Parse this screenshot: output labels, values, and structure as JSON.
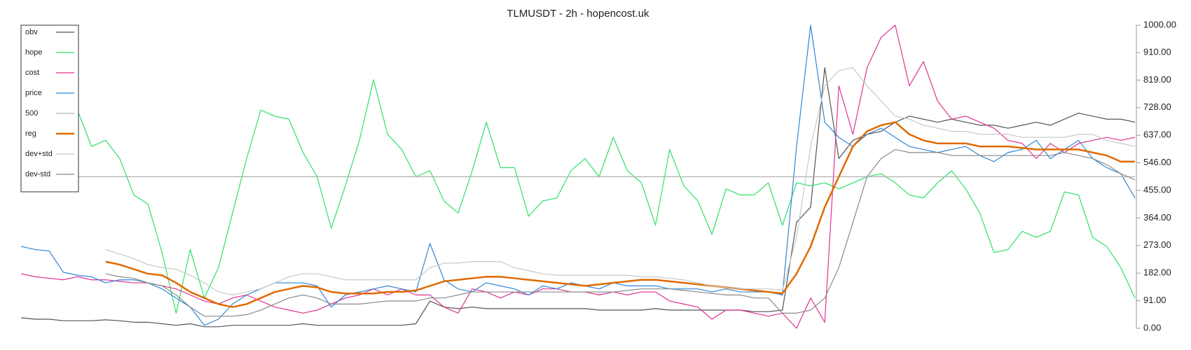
{
  "chart_data": {
    "type": "line",
    "title": "TLMUSDT - 2h - hopencost.uk",
    "ylim": [
      0,
      1000
    ],
    "yticks": [
      {
        "value": 0,
        "label": "0.00"
      },
      {
        "value": 91,
        "label": "91.00"
      },
      {
        "value": 182,
        "label": "182.00"
      },
      {
        "value": 273,
        "label": "273.00"
      },
      {
        "value": 364,
        "label": "364.00"
      },
      {
        "value": 455,
        "label": "455.00"
      },
      {
        "value": 546,
        "label": "546.00"
      },
      {
        "value": 637,
        "label": "637.00"
      },
      {
        "value": 728,
        "label": "728.00"
      },
      {
        "value": 819,
        "label": "819.00"
      },
      {
        "value": 910,
        "label": "910.00"
      },
      {
        "value": 1000,
        "label": "1000.00"
      }
    ],
    "legend": "top-left",
    "grid": false,
    "series": [
      {
        "name": "obv",
        "color": "#555555",
        "values": [
          35,
          30,
          30,
          25,
          25,
          25,
          28,
          25,
          20,
          20,
          15,
          10,
          15,
          5,
          5,
          10,
          10,
          10,
          10,
          10,
          15,
          10,
          10,
          10,
          10,
          10,
          10,
          10,
          15,
          90,
          70,
          65,
          70,
          65,
          65,
          65,
          65,
          65,
          65,
          65,
          65,
          60,
          60,
          60,
          60,
          65,
          60,
          60,
          60,
          60,
          60,
          60,
          55,
          55,
          60,
          350,
          400,
          860,
          560,
          620,
          640,
          650,
          680,
          700,
          690,
          680,
          690,
          680,
          670,
          670,
          660,
          670,
          680,
          670,
          690,
          710,
          700,
          690,
          690,
          680
        ]
      },
      {
        "name": "hope",
        "color": "#2ee06a",
        "values": [
          null,
          null,
          null,
          null,
          720,
          600,
          620,
          560,
          440,
          410,
          250,
          50,
          260,
          100,
          200,
          380,
          560,
          720,
          700,
          690,
          580,
          500,
          330,
          470,
          620,
          820,
          640,
          590,
          500,
          520,
          420,
          380,
          520,
          680,
          530,
          530,
          370,
          420,
          430,
          520,
          560,
          500,
          630,
          520,
          480,
          340,
          590,
          470,
          420,
          310,
          460,
          440,
          440,
          480,
          340,
          480,
          470,
          480,
          460,
          480,
          500,
          510,
          480,
          440,
          430,
          480,
          520,
          460,
          380,
          250,
          260,
          320,
          300,
          320,
          450,
          440,
          300,
          270,
          200,
          100
        ]
      },
      {
        "name": "cost",
        "color": "#e0338f",
        "values": [
          180,
          170,
          165,
          160,
          170,
          160,
          160,
          155,
          150,
          150,
          140,
          130,
          110,
          90,
          80,
          100,
          110,
          90,
          70,
          60,
          50,
          60,
          80,
          100,
          110,
          130,
          110,
          130,
          110,
          110,
          70,
          50,
          130,
          120,
          100,
          120,
          110,
          130,
          130,
          120,
          120,
          110,
          120,
          110,
          120,
          120,
          90,
          80,
          70,
          30,
          60,
          60,
          50,
          40,
          50,
          0,
          100,
          20,
          800,
          640,
          860,
          960,
          1000,
          800,
          880,
          750,
          690,
          700,
          680,
          660,
          620,
          610,
          560,
          610,
          580,
          610,
          620,
          630,
          620,
          630
        ]
      },
      {
        "name": "price",
        "color": "#2f86d6",
        "values": [
          270,
          260,
          255,
          185,
          175,
          170,
          150,
          160,
          160,
          150,
          130,
          100,
          70,
          10,
          30,
          80,
          110,
          130,
          150,
          150,
          150,
          140,
          70,
          110,
          120,
          130,
          140,
          130,
          120,
          280,
          160,
          130,
          120,
          150,
          140,
          130,
          110,
          140,
          130,
          150,
          140,
          130,
          150,
          140,
          140,
          140,
          130,
          130,
          130,
          120,
          130,
          120,
          120,
          120,
          110,
          600,
          1000,
          680,
          630,
          600,
          640,
          660,
          630,
          600,
          590,
          580,
          590,
          600,
          570,
          550,
          580,
          590,
          620,
          560,
          590,
          620,
          560,
          530,
          510,
          430
        ]
      },
      {
        "name": "500",
        "color": "#b0b0b0",
        "values": [
          500,
          500,
          500,
          500,
          500,
          500,
          500,
          500,
          500,
          500,
          500,
          500,
          500,
          500,
          500,
          500,
          500,
          500,
          500,
          500,
          500,
          500,
          500,
          500,
          500,
          500,
          500,
          500,
          500,
          500,
          500,
          500,
          500,
          500,
          500,
          500,
          500,
          500,
          500,
          500,
          500,
          500,
          500,
          500,
          500,
          500,
          500,
          500,
          500,
          500,
          500,
          500,
          500,
          500,
          500,
          500,
          500,
          500,
          500,
          500,
          500,
          500,
          500,
          500,
          500,
          500,
          500,
          500,
          500,
          500,
          500,
          500,
          500,
          500,
          500,
          500,
          500,
          500,
          500,
          500
        ]
      },
      {
        "name": "reg",
        "color": "#e06a00",
        "line_width": 2.5,
        "values": [
          null,
          null,
          null,
          null,
          null,
          null,
          220,
          210,
          195,
          180,
          175,
          150,
          120,
          100,
          80,
          70,
          80,
          100,
          120,
          130,
          140,
          135,
          120,
          115,
          115,
          115,
          120,
          120,
          125,
          140,
          155,
          160,
          165,
          170,
          170,
          165,
          160,
          155,
          150,
          145,
          140,
          145,
          150,
          155,
          160,
          160,
          155,
          150,
          145,
          140,
          135,
          130,
          125,
          120,
          115,
          180,
          270,
          400,
          500,
          600,
          650,
          670,
          680,
          640,
          620,
          610,
          610,
          610,
          600,
          600,
          600,
          595,
          590,
          590,
          590,
          590,
          580,
          570,
          550,
          550
        ]
      },
      {
        "name": "dev+std",
        "color": "#c8c8c8",
        "values": [
          null,
          null,
          null,
          null,
          null,
          null,
          260,
          245,
          230,
          210,
          200,
          195,
          175,
          150,
          120,
          110,
          120,
          130,
          150,
          170,
          180,
          180,
          170,
          160,
          160,
          160,
          160,
          160,
          160,
          200,
          215,
          215,
          220,
          220,
          220,
          200,
          190,
          180,
          175,
          175,
          175,
          175,
          175,
          175,
          170,
          170,
          165,
          160,
          150,
          140,
          135,
          130,
          130,
          130,
          125,
          300,
          600,
          800,
          850,
          860,
          800,
          750,
          700,
          690,
          670,
          660,
          650,
          650,
          640,
          640,
          640,
          630,
          630,
          630,
          630,
          640,
          640,
          620,
          610,
          600
        ]
      },
      {
        "name": "dev-std",
        "color": "#8a8a8a",
        "values": [
          null,
          null,
          null,
          null,
          null,
          null,
          180,
          170,
          165,
          150,
          140,
          110,
          70,
          40,
          40,
          40,
          45,
          60,
          80,
          100,
          110,
          100,
          80,
          80,
          80,
          85,
          90,
          90,
          90,
          100,
          100,
          110,
          120,
          120,
          120,
          120,
          120,
          120,
          120,
          120,
          120,
          120,
          120,
          125,
          130,
          130,
          130,
          125,
          120,
          115,
          110,
          110,
          100,
          100,
          50,
          50,
          60,
          100,
          200,
          350,
          500,
          560,
          590,
          580,
          580,
          580,
          570,
          570,
          570,
          570,
          570,
          570,
          570,
          570,
          580,
          570,
          560,
          540,
          510,
          490
        ]
      }
    ]
  }
}
